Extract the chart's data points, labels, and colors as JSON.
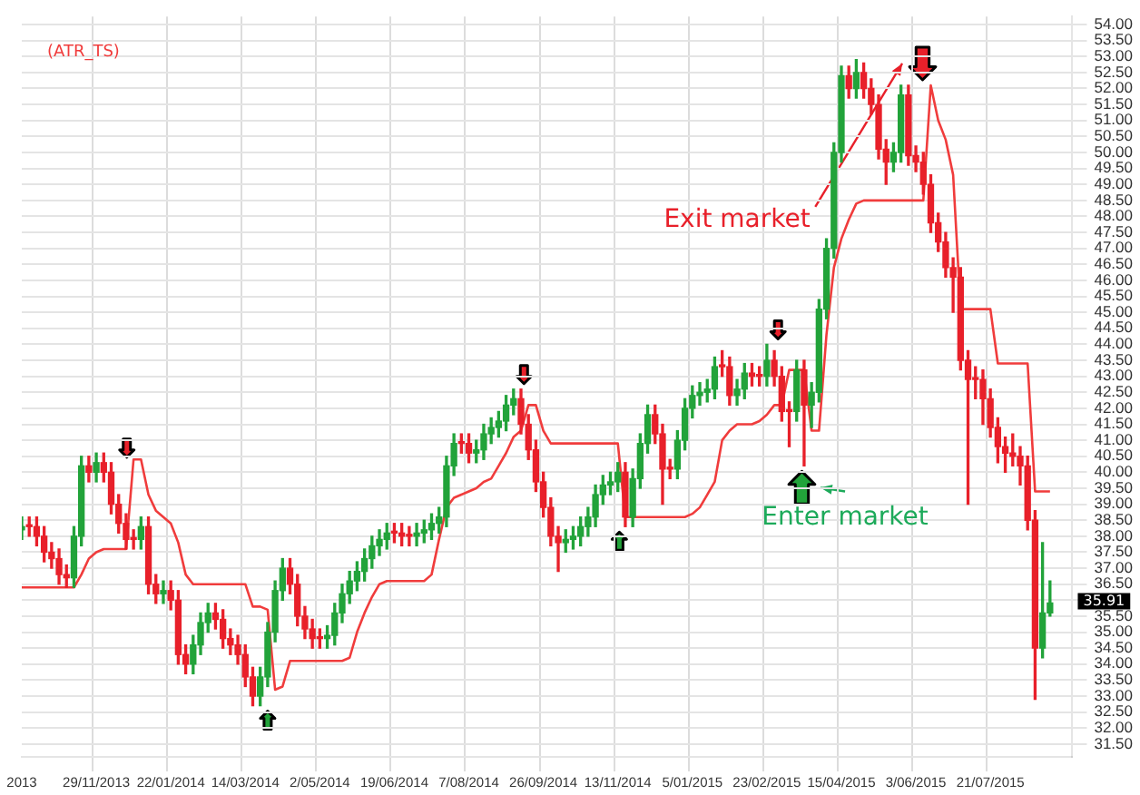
{
  "chart_data": {
    "type": "candlestick",
    "categories": [
      "2013",
      null,
      null,
      null,
      null,
      null,
      null,
      null,
      null,
      null,
      "29/11/2013",
      null,
      null,
      null,
      null,
      null,
      null,
      null,
      null,
      null,
      "22/01/2014",
      null,
      null,
      null,
      null,
      null,
      null,
      null,
      null,
      null,
      "14/03/2014",
      null,
      null,
      null,
      null,
      null,
      null,
      null,
      null,
      null,
      "2/05/2014",
      null,
      null,
      null,
      null,
      null,
      null,
      null,
      null,
      null,
      "19/06/2014",
      null,
      null,
      null,
      null,
      null,
      null,
      null,
      null,
      null,
      "7/08/2014",
      null,
      null,
      null,
      null,
      null,
      null,
      null,
      null,
      null,
      "26/09/2014",
      null,
      null,
      null,
      null,
      null,
      null,
      null,
      null,
      null,
      "13/11/2014",
      null,
      null,
      null,
      null,
      null,
      null,
      null,
      null,
      null,
      "5/01/2015",
      null,
      null,
      null,
      null,
      null,
      null,
      null,
      null,
      null,
      "23/02/2015",
      null,
      null,
      null,
      null,
      null,
      null,
      null,
      null,
      null,
      "15/04/2015",
      null,
      null,
      null,
      null,
      null,
      null,
      null,
      null,
      null,
      "3/06/2015",
      null,
      null,
      null,
      null,
      null,
      null,
      null,
      null,
      null,
      "21/07/2015",
      null,
      null,
      null,
      null,
      null,
      null,
      null,
      null,
      null,
      null,
      null
    ],
    "series": [
      {
        "type": "candlestick",
        "ohlc": [
          [
            38.2,
            38.6,
            37.9,
            38.3
          ],
          [
            38.3,
            38.6,
            38.0,
            38.3
          ],
          [
            38.3,
            38.6,
            37.7,
            38.0
          ],
          [
            38.0,
            38.3,
            37.2,
            37.5
          ],
          [
            37.5,
            37.8,
            37.0,
            37.3
          ],
          [
            37.3,
            37.6,
            36.5,
            36.8
          ],
          [
            36.8,
            37.1,
            36.4,
            36.7
          ],
          [
            36.7,
            38.3,
            36.4,
            38.0
          ],
          [
            38.0,
            40.5,
            37.7,
            40.2
          ],
          [
            40.2,
            40.5,
            39.7,
            40.0
          ],
          [
            40.0,
            40.6,
            39.7,
            40.3
          ],
          [
            40.3,
            40.6,
            39.7,
            40.0
          ],
          [
            40.0,
            40.3,
            38.7,
            39.0
          ],
          [
            39.0,
            39.3,
            38.1,
            38.4
          ],
          [
            38.4,
            38.7,
            37.6,
            37.9
          ],
          [
            37.9,
            38.2,
            37.6,
            37.9
          ],
          [
            37.9,
            38.6,
            37.6,
            38.3
          ],
          [
            38.3,
            38.6,
            36.2,
            36.5
          ],
          [
            36.5,
            36.8,
            35.9,
            36.2
          ],
          [
            36.2,
            36.6,
            35.9,
            36.3
          ],
          [
            36.3,
            36.6,
            35.7,
            36.0
          ],
          [
            36.0,
            36.3,
            34.0,
            34.3
          ],
          [
            34.3,
            34.6,
            33.7,
            34.0
          ],
          [
            34.0,
            34.9,
            33.7,
            34.6
          ],
          [
            34.6,
            35.6,
            34.3,
            35.3
          ],
          [
            35.3,
            35.9,
            35.0,
            35.6
          ],
          [
            35.6,
            35.9,
            35.1,
            35.4
          ],
          [
            35.4,
            35.7,
            34.5,
            34.8
          ],
          [
            34.8,
            35.1,
            34.3,
            34.6
          ],
          [
            34.6,
            34.9,
            34.0,
            34.3
          ],
          [
            34.3,
            34.6,
            33.3,
            33.6
          ],
          [
            33.6,
            33.9,
            32.7,
            33.0
          ],
          [
            33.0,
            33.9,
            32.7,
            33.6
          ],
          [
            33.6,
            35.3,
            33.3,
            35.0
          ],
          [
            35.0,
            36.6,
            34.7,
            36.3
          ],
          [
            36.3,
            37.3,
            36.0,
            37.0
          ],
          [
            37.0,
            37.3,
            36.2,
            36.5
          ],
          [
            36.5,
            36.8,
            35.2,
            35.5
          ],
          [
            35.5,
            35.8,
            34.8,
            35.1
          ],
          [
            35.1,
            35.4,
            34.5,
            34.8
          ],
          [
            34.8,
            35.1,
            34.5,
            34.8
          ],
          [
            34.8,
            35.2,
            34.5,
            34.9
          ],
          [
            34.9,
            35.9,
            34.6,
            35.6
          ],
          [
            35.6,
            36.5,
            35.3,
            36.2
          ],
          [
            36.2,
            36.9,
            35.9,
            36.6
          ],
          [
            36.6,
            37.2,
            36.3,
            36.9
          ],
          [
            36.9,
            37.6,
            36.6,
            37.3
          ],
          [
            37.3,
            38.0,
            37.0,
            37.7
          ],
          [
            37.7,
            38.2,
            37.4,
            37.9
          ],
          [
            37.9,
            38.4,
            37.6,
            38.1
          ],
          [
            38.1,
            38.4,
            37.8,
            38.1
          ],
          [
            38.1,
            38.4,
            37.7,
            38.0
          ],
          [
            38.0,
            38.3,
            37.7,
            38.0
          ],
          [
            38.0,
            38.4,
            37.7,
            38.1
          ],
          [
            38.1,
            38.5,
            37.8,
            38.2
          ],
          [
            38.2,
            38.7,
            37.9,
            38.4
          ],
          [
            38.4,
            38.9,
            38.1,
            38.6
          ],
          [
            38.6,
            40.5,
            38.3,
            40.2
          ],
          [
            40.2,
            41.2,
            39.9,
            40.9
          ],
          [
            40.9,
            41.2,
            40.6,
            40.9
          ],
          [
            40.9,
            41.2,
            40.3,
            40.6
          ],
          [
            40.6,
            41.0,
            40.3,
            40.7
          ],
          [
            40.7,
            41.5,
            40.4,
            41.2
          ],
          [
            41.2,
            41.7,
            40.9,
            41.4
          ],
          [
            41.4,
            41.9,
            41.1,
            41.6
          ],
          [
            41.6,
            42.4,
            41.3,
            42.1
          ],
          [
            42.1,
            42.6,
            41.8,
            42.3
          ],
          [
            42.3,
            42.6,
            41.2,
            41.5
          ],
          [
            41.5,
            41.8,
            40.4,
            40.7
          ],
          [
            40.7,
            41.0,
            39.4,
            39.7
          ],
          [
            39.7,
            40.0,
            38.6,
            38.9
          ],
          [
            38.9,
            39.2,
            37.7,
            38.0
          ],
          [
            38.0,
            38.3,
            36.9,
            37.8
          ],
          [
            37.8,
            38.2,
            37.5,
            37.9
          ],
          [
            37.9,
            38.3,
            37.6,
            38.0
          ],
          [
            38.0,
            38.6,
            37.7,
            38.3
          ],
          [
            38.3,
            38.9,
            38.0,
            38.6
          ],
          [
            38.6,
            39.6,
            38.3,
            39.3
          ],
          [
            39.3,
            39.9,
            39.0,
            39.6
          ],
          [
            39.6,
            40.0,
            39.3,
            39.7
          ],
          [
            39.7,
            40.3,
            39.4,
            40.0
          ],
          [
            40.0,
            40.3,
            38.3,
            38.6
          ],
          [
            38.6,
            40.1,
            38.3,
            39.8
          ],
          [
            39.8,
            41.2,
            39.5,
            40.9
          ],
          [
            40.9,
            42.1,
            40.6,
            41.8
          ],
          [
            41.8,
            42.1,
            40.9,
            41.2
          ],
          [
            41.2,
            41.5,
            39.0,
            40.1
          ],
          [
            40.1,
            40.4,
            39.8,
            40.1
          ],
          [
            40.1,
            41.3,
            39.8,
            41.0
          ],
          [
            41.0,
            42.3,
            40.7,
            42.0
          ],
          [
            42.0,
            42.7,
            41.7,
            42.4
          ],
          [
            42.4,
            42.8,
            42.1,
            42.5
          ],
          [
            42.5,
            42.9,
            42.2,
            42.6
          ],
          [
            42.6,
            43.6,
            42.3,
            43.3
          ],
          [
            43.3,
            43.8,
            43.0,
            43.3
          ],
          [
            43.3,
            43.6,
            42.1,
            42.4
          ],
          [
            42.4,
            42.9,
            42.1,
            42.6
          ],
          [
            42.6,
            43.4,
            42.3,
            43.1
          ],
          [
            43.1,
            43.4,
            42.7,
            43.0
          ],
          [
            43.0,
            43.3,
            42.7,
            43.0
          ],
          [
            43.0,
            44.0,
            42.7,
            43.5
          ],
          [
            43.5,
            43.8,
            42.7,
            43.0
          ],
          [
            43.0,
            43.3,
            41.6,
            41.9
          ],
          [
            41.9,
            42.2,
            40.8,
            41.9
          ],
          [
            41.9,
            43.5,
            41.6,
            43.2
          ],
          [
            43.2,
            43.5,
            40.2,
            42.1
          ],
          [
            42.1,
            42.8,
            41.4,
            42.5
          ],
          [
            42.5,
            45.4,
            42.2,
            45.1
          ],
          [
            45.1,
            47.3,
            44.8,
            47.0
          ],
          [
            47.0,
            50.3,
            46.7,
            50.0
          ],
          [
            50.0,
            52.7,
            49.7,
            52.4
          ],
          [
            52.4,
            52.7,
            51.7,
            52.0
          ],
          [
            52.0,
            52.9,
            51.7,
            52.5
          ],
          [
            52.5,
            52.8,
            51.7,
            52.0
          ],
          [
            52.0,
            52.3,
            51.2,
            51.5
          ],
          [
            51.5,
            51.8,
            49.8,
            50.1
          ],
          [
            50.1,
            50.4,
            49.0,
            49.7
          ],
          [
            49.7,
            50.3,
            49.4,
            50.0
          ],
          [
            50.0,
            52.1,
            49.7,
            51.8
          ],
          [
            51.8,
            52.1,
            49.6,
            49.9
          ],
          [
            49.9,
            50.2,
            49.4,
            49.7
          ],
          [
            49.7,
            50.0,
            48.7,
            49.0
          ],
          [
            49.0,
            49.3,
            47.5,
            47.8
          ],
          [
            47.8,
            48.1,
            46.9,
            47.2
          ],
          [
            47.2,
            47.5,
            46.1,
            46.4
          ],
          [
            46.4,
            46.7,
            45.0,
            46.1
          ],
          [
            46.1,
            46.4,
            43.2,
            43.5
          ],
          [
            43.5,
            43.8,
            39.0,
            42.9
          ],
          [
            42.9,
            43.3,
            42.3,
            42.9
          ],
          [
            42.9,
            43.2,
            41.5,
            42.3
          ],
          [
            42.3,
            42.6,
            41.1,
            41.4
          ],
          [
            41.4,
            41.7,
            40.3,
            40.8
          ],
          [
            40.8,
            41.1,
            40.0,
            40.6
          ],
          [
            40.6,
            41.2,
            40.2,
            40.5
          ],
          [
            40.5,
            40.8,
            39.6,
            40.2
          ],
          [
            40.2,
            40.5,
            38.2,
            38.5
          ],
          [
            38.5,
            38.8,
            32.9,
            34.5
          ],
          [
            34.5,
            37.8,
            34.2,
            35.6
          ],
          [
            35.6,
            36.6,
            35.5,
            35.91
          ],
          null,
          null,
          null
        ],
        "colors": [
          "#22a33a",
          "#e8202a",
          "#e8202a",
          "#e8202a",
          "#e8202a",
          "#e8202a",
          "#e8202a",
          "#22a33a",
          "#22a33a",
          "#e8202a",
          "#22a33a",
          "#e8202a",
          "#e8202a",
          "#e8202a",
          "#e8202a",
          "#e8202a",
          "#22a33a",
          "#e8202a",
          "#e8202a",
          "#22a33a",
          "#e8202a",
          "#e8202a",
          "#e8202a",
          "#22a33a",
          "#22a33a",
          "#22a33a",
          "#e8202a",
          "#e8202a",
          "#e8202a",
          "#e8202a",
          "#e8202a",
          "#e8202a",
          "#22a33a",
          "#22a33a",
          "#22a33a",
          "#22a33a",
          "#e8202a",
          "#e8202a",
          "#e8202a",
          "#e8202a",
          "#e8202a",
          "#22a33a",
          "#22a33a",
          "#22a33a",
          "#22a33a",
          "#22a33a",
          "#22a33a",
          "#22a33a",
          "#22a33a",
          "#22a33a",
          "#e8202a",
          "#e8202a",
          "#e8202a",
          "#22a33a",
          "#22a33a",
          "#22a33a",
          "#22a33a",
          "#22a33a",
          "#22a33a",
          "#e8202a",
          "#e8202a",
          "#22a33a",
          "#22a33a",
          "#22a33a",
          "#22a33a",
          "#22a33a",
          "#22a33a",
          "#e8202a",
          "#e8202a",
          "#e8202a",
          "#e8202a",
          "#e8202a",
          "#e8202a",
          "#22a33a",
          "#22a33a",
          "#22a33a",
          "#22a33a",
          "#22a33a",
          "#22a33a",
          "#22a33a",
          "#22a33a",
          "#e8202a",
          "#22a33a",
          "#22a33a",
          "#22a33a",
          "#e8202a",
          "#e8202a",
          "#e8202a",
          "#22a33a",
          "#22a33a",
          "#22a33a",
          "#22a33a",
          "#22a33a",
          "#22a33a",
          "#e8202a",
          "#e8202a",
          "#22a33a",
          "#22a33a",
          "#e8202a",
          "#e8202a",
          "#22a33a",
          "#e8202a",
          "#e8202a",
          "#e8202a",
          "#22a33a",
          "#e8202a",
          "#22a33a",
          "#22a33a",
          "#22a33a",
          "#22a33a",
          "#22a33a",
          "#e8202a",
          "#22a33a",
          "#e8202a",
          "#e8202a",
          "#e8202a",
          "#e8202a",
          "#22a33a",
          "#22a33a",
          "#e8202a",
          "#e8202a",
          "#e8202a",
          "#e8202a",
          "#e8202a",
          "#e8202a",
          "#e8202a",
          "#e8202a",
          "#e8202a",
          "#e8202a",
          "#e8202a",
          "#e8202a",
          "#e8202a",
          "#e8202a",
          "#e8202a",
          "#e8202a",
          "#e8202a",
          "#e8202a",
          "#22a33a",
          "#22a33a",
          null,
          null,
          null
        ]
      },
      {
        "type": "line",
        "name": "(ATR_TS)",
        "color": "#f03c3c",
        "values": [
          36.4,
          36.4,
          36.4,
          36.4,
          36.4,
          36.4,
          36.4,
          36.4,
          36.8,
          37.3,
          37.5,
          37.6,
          37.6,
          37.6,
          37.6,
          40.4,
          40.4,
          39.3,
          38.8,
          38.6,
          38.4,
          37.8,
          36.8,
          36.5,
          36.5,
          36.5,
          36.5,
          36.5,
          36.5,
          36.5,
          36.5,
          35.8,
          35.8,
          35.7,
          33.2,
          33.3,
          34.1,
          34.1,
          34.1,
          34.1,
          34.1,
          34.1,
          34.1,
          34.1,
          34.2,
          35.0,
          35.6,
          36.1,
          36.5,
          36.6,
          36.6,
          36.6,
          36.6,
          36.6,
          36.6,
          36.8,
          37.9,
          38.9,
          39.2,
          39.3,
          39.4,
          39.5,
          39.7,
          39.8,
          40.2,
          40.6,
          41.1,
          41.3,
          42.1,
          42.1,
          41.3,
          40.9,
          40.9,
          40.9,
          40.9,
          40.9,
          40.9,
          40.9,
          40.9,
          40.9,
          40.9,
          38.6,
          38.6,
          38.6,
          38.6,
          38.6,
          38.6,
          38.6,
          38.6,
          38.6,
          38.7,
          38.9,
          39.3,
          39.7,
          41.0,
          41.3,
          41.5,
          41.5,
          41.5,
          41.6,
          41.8,
          42.1,
          42.1,
          43.2,
          43.2,
          43.2,
          41.3,
          41.3,
          44.3,
          46.4,
          47.3,
          47.9,
          48.4,
          48.5,
          48.5,
          48.5,
          48.5,
          48.5,
          48.5,
          48.5,
          48.5,
          48.5,
          52.1,
          51.0,
          50.4,
          49.3,
          45.1,
          45.1,
          45.1,
          45.1,
          45.1,
          43.4,
          43.4,
          43.4,
          43.4,
          43.4,
          39.4,
          39.4,
          39.4,
          null,
          null,
          null
        ]
      }
    ],
    "ylim": [
      31.1,
      54.25
    ],
    "yticks": [
      {
        "value": 31.5,
        "label": "31.50"
      },
      {
        "value": 32,
        "label": "32.00"
      },
      {
        "value": 32.5,
        "label": "32.50"
      },
      {
        "value": 33,
        "label": "33.00"
      },
      {
        "value": 33.5,
        "label": "33.50"
      },
      {
        "value": 34,
        "label": "34.00"
      },
      {
        "value": 34.5,
        "label": "34.50"
      },
      {
        "value": 35,
        "label": "35.00"
      },
      {
        "value": 35.5,
        "label": "35.50"
      },
      {
        "value": 36,
        "label": null
      },
      {
        "value": 36.5,
        "label": "36.50"
      },
      {
        "value": 37,
        "label": "37.00"
      },
      {
        "value": 37.5,
        "label": "37.50"
      },
      {
        "value": 38,
        "label": "38.00"
      },
      {
        "value": 38.5,
        "label": "38.50"
      },
      {
        "value": 39,
        "label": "39.00"
      },
      {
        "value": 39.5,
        "label": "39.50"
      },
      {
        "value": 40,
        "label": "40.00"
      },
      {
        "value": 40.5,
        "label": "40.50"
      },
      {
        "value": 41,
        "label": "41.00"
      },
      {
        "value": 41.5,
        "label": "41.50"
      },
      {
        "value": 42,
        "label": "42.00"
      },
      {
        "value": 42.5,
        "label": "42.50"
      },
      {
        "value": 43,
        "label": "43.00"
      },
      {
        "value": 43.5,
        "label": "43.50"
      },
      {
        "value": 44,
        "label": "44.00"
      },
      {
        "value": 44.5,
        "label": "44.50"
      },
      {
        "value": 45,
        "label": "45.00"
      },
      {
        "value": 45.5,
        "label": "45.50"
      },
      {
        "value": 46,
        "label": "46.00"
      },
      {
        "value": 46.5,
        "label": "46.50"
      },
      {
        "value": 47,
        "label": "47.00"
      },
      {
        "value": 47.5,
        "label": "47.50"
      },
      {
        "value": 48,
        "label": "48.00"
      },
      {
        "value": 48.5,
        "label": "48.50"
      },
      {
        "value": 49,
        "label": "49.00"
      },
      {
        "value": 49.5,
        "label": "49.50"
      },
      {
        "value": 50,
        "label": "50.00"
      },
      {
        "value": 50.5,
        "label": "50.50"
      },
      {
        "value": 51,
        "label": "51.00"
      },
      {
        "value": 51.5,
        "label": "51.50"
      },
      {
        "value": 52,
        "label": "52.00"
      },
      {
        "value": 52.5,
        "label": "52.50"
      },
      {
        "value": 53,
        "label": "53.00"
      },
      {
        "value": 53.5,
        "label": "53.50"
      },
      {
        "value": 54,
        "label": "54.00"
      }
    ],
    "grid": true,
    "legend": "top left",
    "annotations": [
      "Exit market",
      "Enter market",
      "35.91"
    ]
  }
}
